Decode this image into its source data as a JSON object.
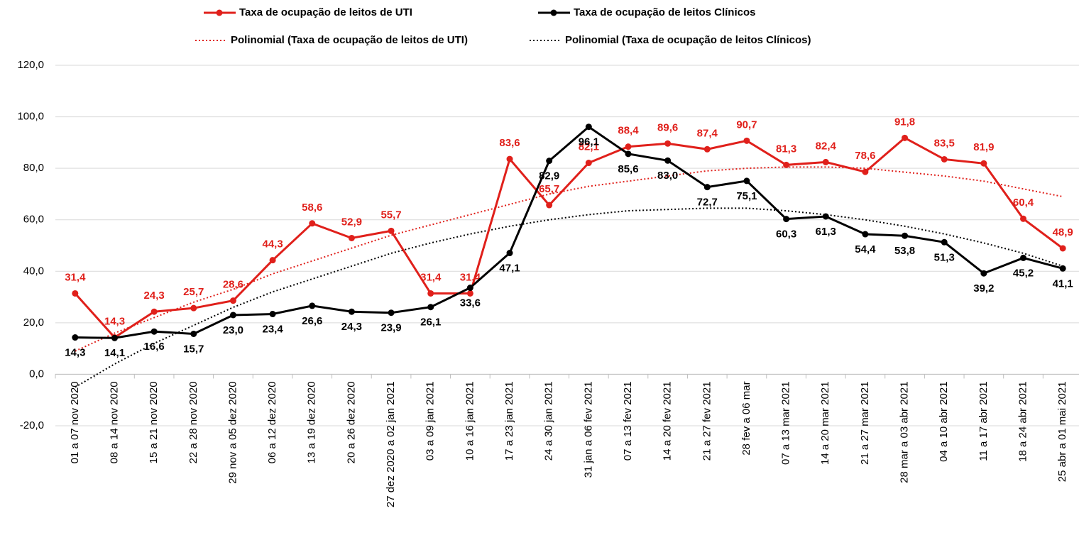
{
  "chart_data": {
    "type": "line",
    "categories": [
      "01 a 07 nov 2020",
      "08 a 14 nov 2020",
      "15 a 21 nov 2020",
      "22 a 28 nov 2020",
      "29 nov a 05 dez 2020",
      "06 a 12 dez 2020",
      "13 a 19 dez 2020",
      "20 a 26 dez 2020",
      "27 dez 2020 a 02 jan 2021",
      "03 a 09 jan 2021",
      "10 a 16 jan 2021",
      "17 a 23 jan 2021",
      "24 a 30 jan 2021",
      "31 jan a 06 fev 2021",
      "07 a 13 fev 2021",
      "14 a 20 fev 2021",
      "21 a 27 fev 2021",
      "28 fev a 06 mar",
      "07 a 13 mar 2021",
      "14 a 20 mar 2021",
      "21 a 27 mar 2021",
      "28 mar a 03 abr 2021",
      "04 a 10 abr 2021",
      "11 a 17 abr 2021",
      "18 a 24 abr 2021",
      "25 abr a 01 mai 2021"
    ],
    "series": [
      {
        "name": "Taxa de ocupação de leitos de UTI",
        "color": "#e0201b",
        "style": "solid",
        "label_position": "above",
        "values": [
          31.4,
          14.3,
          24.3,
          25.7,
          28.6,
          44.3,
          58.6,
          52.9,
          55.7,
          31.4,
          31.4,
          83.6,
          65.7,
          82.1,
          88.4,
          89.6,
          87.4,
          90.7,
          81.3,
          82.4,
          78.6,
          91.8,
          83.5,
          81.9,
          60.4,
          48.9
        ],
        "value_labels": [
          "31,4",
          "14,3",
          "24,3",
          "25,7",
          "28,6",
          "44,3",
          "58,6",
          "52,9",
          "55,7",
          "31,4",
          "31,4",
          "83,6",
          "65,7",
          "82,1",
          "88,4",
          "89,6",
          "87,4",
          "90,7",
          "81,3",
          "82,4",
          "78,6",
          "91,8",
          "83,5",
          "81,9",
          "60,4",
          "48,9"
        ]
      },
      {
        "name": "Taxa de ocupação de leitos Clínicos",
        "color": "#000000",
        "style": "solid",
        "label_position": "below",
        "values": [
          14.3,
          14.1,
          16.6,
          15.7,
          23.0,
          23.4,
          26.6,
          24.3,
          23.9,
          26.1,
          33.6,
          47.1,
          82.9,
          96.1,
          85.6,
          83.0,
          72.7,
          75.1,
          60.3,
          61.3,
          54.4,
          53.8,
          51.3,
          39.2,
          45.2,
          41.1
        ],
        "value_labels": [
          "14,3",
          "14,1",
          "16,6",
          "15,7",
          "23,0",
          "23,4",
          "26,6",
          "24,3",
          "23,9",
          "26,1",
          "33,6",
          "47,1",
          "82,9",
          "96,1",
          "85,6",
          "83,0",
          "72,7",
          "75,1",
          "60,3",
          "61,3",
          "54,4",
          "53,8",
          "51,3",
          "39,2",
          "45,2",
          "41,1"
        ]
      },
      {
        "name": "Polinomial (Taxa de ocupação de leitos de UTI)",
        "color": "#e0201b",
        "style": "dotted",
        "values": [
          9,
          16,
          22,
          28,
          33,
          39,
          44,
          49,
          54,
          58,
          62,
          66,
          70,
          73,
          75,
          77,
          79,
          80,
          80.5,
          80.5,
          80,
          78.5,
          77,
          75,
          72,
          69
        ]
      },
      {
        "name": "Polinomial (Taxa de ocupação de leitos Clínicos)",
        "color": "#000000",
        "style": "dotted",
        "values": [
          -5,
          4,
          12,
          19,
          26,
          32,
          37,
          42,
          47,
          51,
          54.5,
          57.5,
          60,
          62,
          63.5,
          64,
          64.5,
          64.5,
          63.5,
          62,
          60,
          57.5,
          54.5,
          51,
          47,
          42
        ]
      }
    ],
    "ylim": [
      -20,
      120
    ],
    "yticks": [
      {
        "value": -20,
        "label": "-20,0"
      },
      {
        "value": 0,
        "label": "0,0"
      },
      {
        "value": 20,
        "label": "20,0"
      },
      {
        "value": 40,
        "label": "40,0"
      },
      {
        "value": 60,
        "label": "60,0"
      },
      {
        "value": 80,
        "label": "80,0"
      },
      {
        "value": 100,
        "label": "100,0"
      },
      {
        "value": 120,
        "label": "120,0"
      }
    ],
    "grid": true
  }
}
